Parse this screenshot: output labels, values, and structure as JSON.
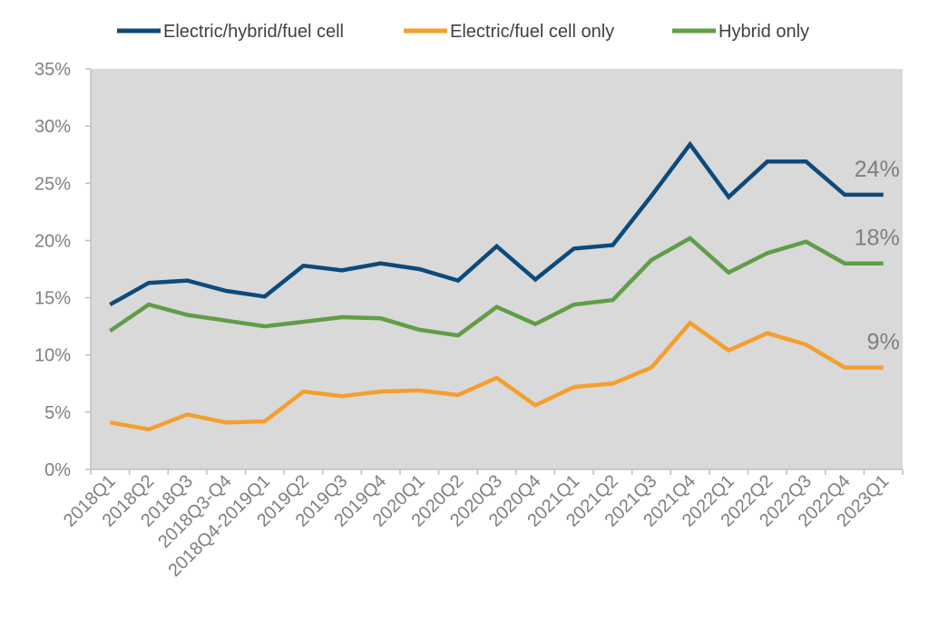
{
  "chart_data": {
    "type": "line",
    "title": "",
    "xlabel": "",
    "ylabel": "",
    "ylim": [
      0,
      35
    ],
    "y_ticks": [
      "0%",
      "5%",
      "10%",
      "15%",
      "20%",
      "25%",
      "30%",
      "35%"
    ],
    "grid": false,
    "legend_position": "top",
    "categories": [
      "2018Q1",
      "2018Q2",
      "2018Q3",
      "2018Q3-Q4",
      "2018Q4-2019Q1",
      "2019Q2",
      "2019Q3",
      "2019Q4",
      "2020Q1",
      "2020Q2",
      "2020Q3",
      "2020Q4",
      "2021Q1",
      "2021Q2",
      "2021Q3",
      "2021Q4",
      "2022Q1",
      "2022Q2",
      "2022Q3",
      "2022Q4",
      "2023Q1"
    ],
    "series": [
      {
        "name": "Electric/hybrid/fuel cell",
        "color": "#0d4a7c",
        "values": [
          14.4,
          16.3,
          16.5,
          15.6,
          15.1,
          17.8,
          17.4,
          18.0,
          17.5,
          16.5,
          19.5,
          16.6,
          19.3,
          19.6,
          23.9,
          28.4,
          23.8,
          26.9,
          26.9,
          24.0,
          24.0
        ],
        "end_label": "24%"
      },
      {
        "name": "Electric/fuel cell only",
        "color": "#f59e2e",
        "values": [
          4.1,
          3.5,
          4.8,
          4.1,
          4.2,
          6.8,
          6.4,
          6.8,
          6.9,
          6.5,
          8.0,
          5.6,
          7.2,
          7.5,
          8.9,
          12.8,
          10.4,
          11.9,
          10.9,
          8.9,
          8.9
        ],
        "end_label": "9%"
      },
      {
        "name": "Hybrid only",
        "color": "#5f9e46",
        "values": [
          12.1,
          14.4,
          13.5,
          13.0,
          12.5,
          12.9,
          13.3,
          13.2,
          12.2,
          11.7,
          14.2,
          12.7,
          14.4,
          14.8,
          18.3,
          20.2,
          17.2,
          18.9,
          19.9,
          18.0,
          18.0
        ],
        "end_label": "18%"
      }
    ]
  }
}
